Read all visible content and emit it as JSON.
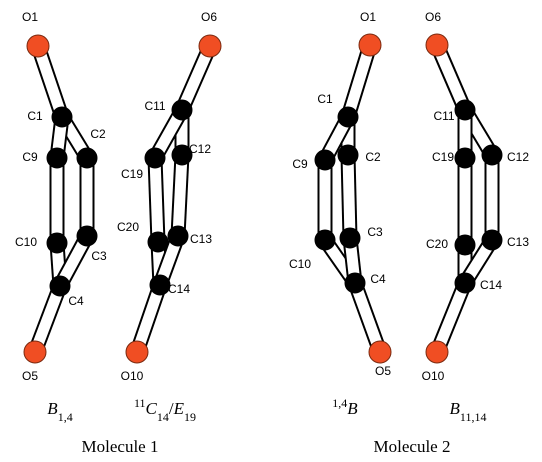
{
  "molecules": [
    {
      "label": "Molecule 1",
      "rings": [
        {
          "atoms": [
            "O1",
            "C1",
            "C2",
            "C9",
            "C10",
            "C3",
            "C4",
            "O5"
          ],
          "conformation": [
            {
              "text": "B",
              "style": "italic"
            },
            {
              "text": "1,4",
              "style": "sub"
            }
          ]
        },
        {
          "atoms": [
            "O6",
            "C11",
            "C12",
            "C19",
            "C20",
            "C13",
            "C14",
            "O10"
          ],
          "conformation": [
            {
              "text": "11",
              "style": "sup"
            },
            {
              "text": "C",
              "style": "italic"
            },
            {
              "text": "14",
              "style": "sub"
            },
            {
              "text": "/",
              "style": "plain"
            },
            {
              "text": "E",
              "style": "italic"
            },
            {
              "text": "19",
              "style": "sub"
            }
          ]
        }
      ]
    },
    {
      "label": "Molecule 2",
      "rings": [
        {
          "atoms": [
            "O1",
            "C1",
            "C2",
            "C9",
            "C10",
            "C3",
            "C4",
            "O5"
          ],
          "conformation": [
            {
              "text": "1,4",
              "style": "sup"
            },
            {
              "text": "B",
              "style": "italic"
            }
          ]
        },
        {
          "atoms": [
            "O6",
            "C11",
            "C12",
            "C19",
            "C20",
            "C13",
            "C14",
            "O10"
          ],
          "conformation": [
            {
              "text": "B",
              "style": "italic"
            },
            {
              "text": "11,14",
              "style": "sub"
            }
          ]
        }
      ]
    }
  ]
}
